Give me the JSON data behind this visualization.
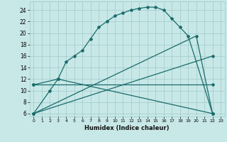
{
  "xlabel": "Humidex (Indice chaleur)",
  "background_color": "#c8e8e8",
  "grid_color": "#a0c8c8",
  "line_color": "#1a6b6b",
  "xlim": [
    -0.5,
    23.5
  ],
  "ylim": [
    5.5,
    25.5
  ],
  "xticks": [
    0,
    1,
    2,
    3,
    4,
    5,
    6,
    7,
    8,
    9,
    10,
    11,
    12,
    13,
    14,
    15,
    16,
    17,
    18,
    19,
    20,
    21,
    22,
    23
  ],
  "yticks": [
    6,
    8,
    10,
    12,
    14,
    16,
    18,
    20,
    22,
    24
  ],
  "curve1_x": [
    0,
    2,
    3,
    4,
    5,
    6,
    7,
    8,
    9,
    10,
    11,
    12,
    13,
    14,
    15,
    16,
    17,
    18,
    19,
    22
  ],
  "curve1_y": [
    6,
    10,
    12,
    15,
    16,
    17,
    19,
    21,
    22,
    23,
    23.5,
    24,
    24.3,
    24.5,
    24.5,
    24,
    22.5,
    21,
    19.5,
    6
  ],
  "curve2_x": [
    0,
    20,
    22
  ],
  "curve2_y": [
    6,
    19.5,
    6
  ],
  "curve3_x": [
    0,
    22
  ],
  "curve3_y": [
    6,
    16
  ],
  "curve4_x": [
    0,
    3,
    22
  ],
  "curve4_y": [
    11,
    12,
    6
  ],
  "curve5_x": [
    0,
    22
  ],
  "curve5_y": [
    11,
    11
  ],
  "marker": "*",
  "markersize": 3,
  "linewidth": 0.9
}
